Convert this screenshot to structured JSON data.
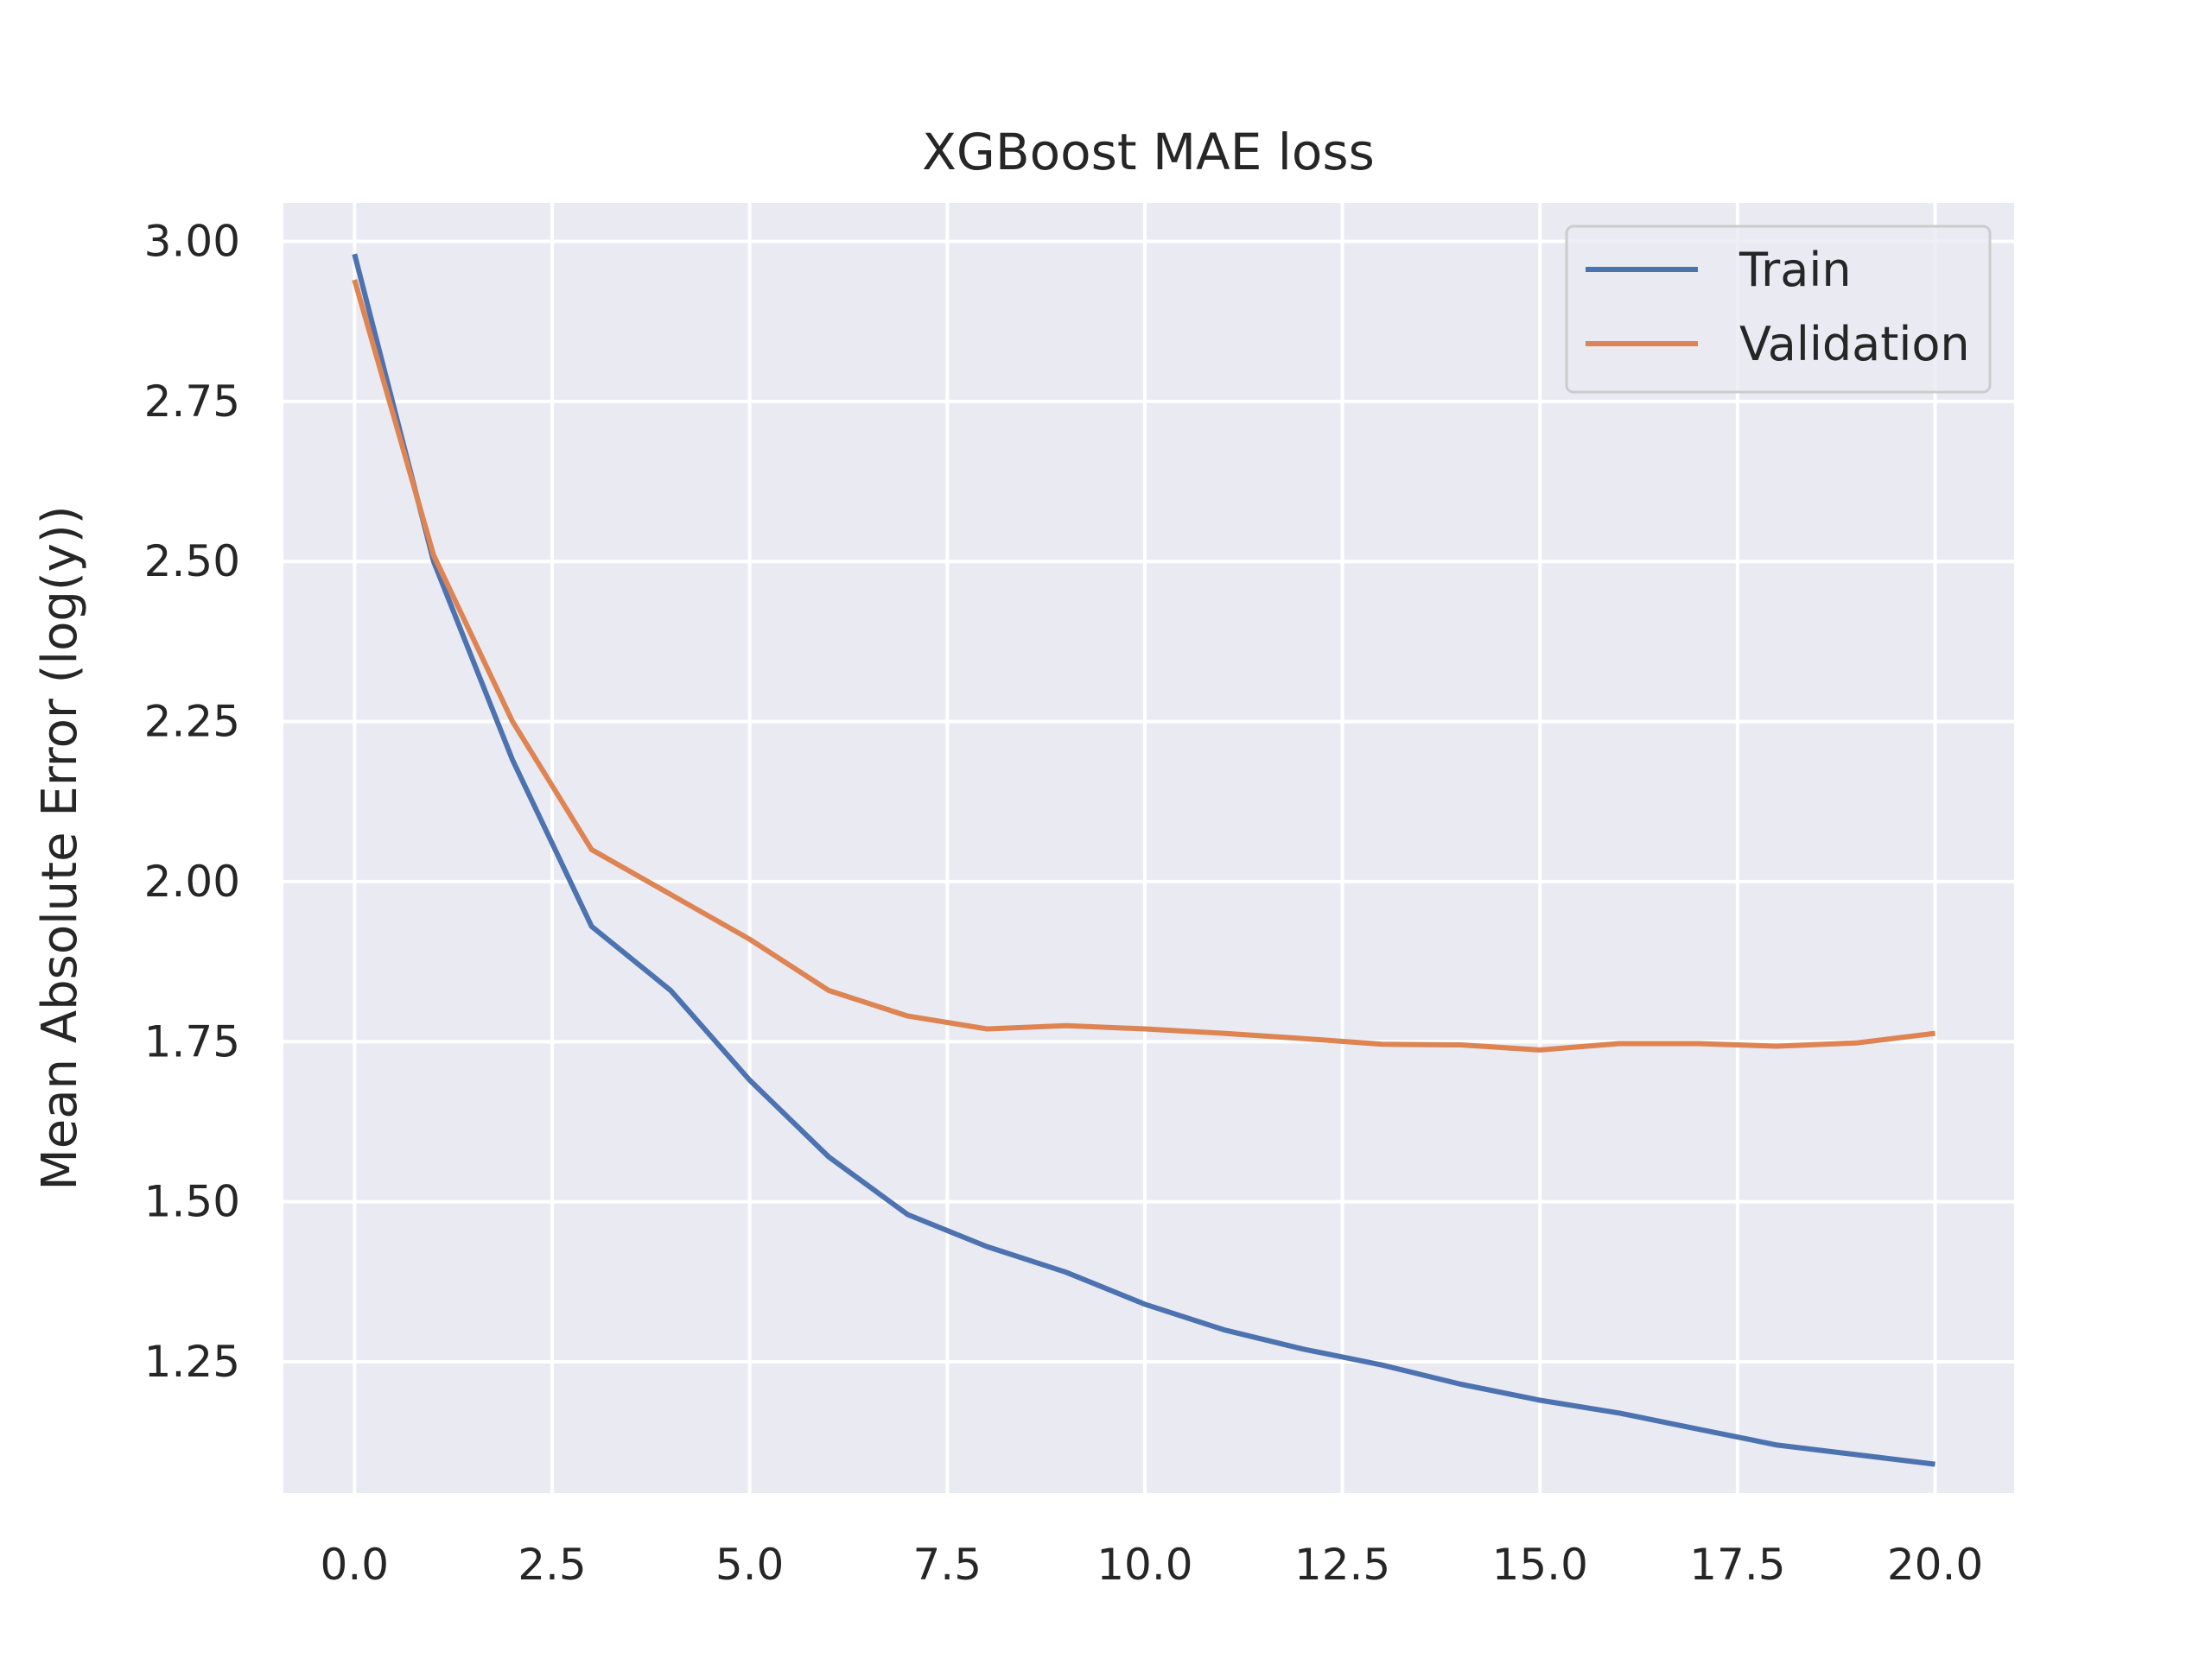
{
  "chart_data": {
    "type": "line",
    "title": "XGBoost MAE loss",
    "xlabel": "",
    "ylabel": "Mean Absolute Error (log(y))",
    "xlim": [
      -0.9,
      21.0
    ],
    "ylim": [
      1.045,
      3.06
    ],
    "xticks": [
      "0.0",
      "2.5",
      "5.0",
      "7.5",
      "10.0",
      "12.5",
      "15.0",
      "17.5",
      "20.0"
    ],
    "yticks": [
      "1.25",
      "1.50",
      "1.75",
      "2.00",
      "2.25",
      "2.50",
      "2.75",
      "3.00"
    ],
    "grid": true,
    "legend_position": "top-right",
    "background_color": "#eaeaf2",
    "grid_color": "#ffffff",
    "x": [
      0,
      1,
      2,
      3,
      4,
      5,
      6,
      7,
      8,
      9,
      10,
      11,
      12,
      13,
      14,
      15,
      16,
      17,
      18,
      19,
      20
    ],
    "series": [
      {
        "name": "Train",
        "color": "#4c72b0",
        "values": [
          2.98,
          2.5,
          2.19,
          1.93,
          1.83,
          1.69,
          1.57,
          1.48,
          1.43,
          1.39,
          1.34,
          1.3,
          1.27,
          1.245,
          1.215,
          1.19,
          1.17,
          1.145,
          1.12,
          1.105,
          1.09
        ]
      },
      {
        "name": "Validation",
        "color": "#dd8452",
        "values": [
          2.94,
          2.51,
          2.25,
          2.05,
          1.98,
          1.91,
          1.83,
          1.79,
          1.77,
          1.775,
          1.77,
          1.763,
          1.755,
          1.746,
          1.745,
          1.737,
          1.747,
          1.747,
          1.743,
          1.748,
          1.763
        ]
      }
    ]
  }
}
